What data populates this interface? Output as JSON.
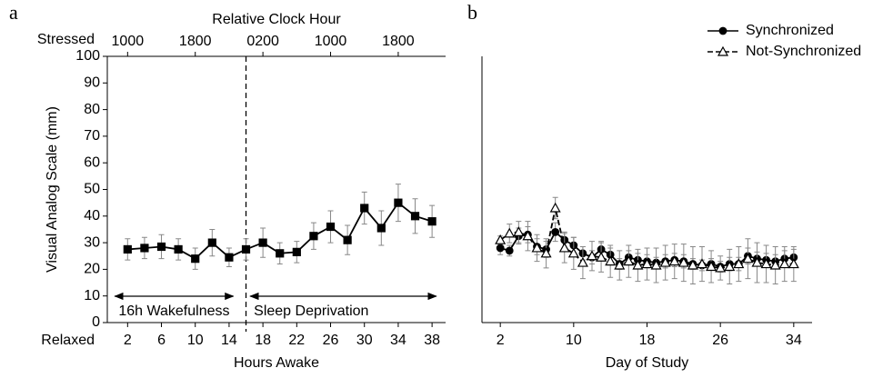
{
  "chart_data": [
    {
      "type": "line",
      "panel_label": "a",
      "top_axis_label": "Relative Clock Hour",
      "top_end_label": "Stressed",
      "bottom_end_label": "Relaxed",
      "x_label": "Hours Awake",
      "y_label": "Visual Analog Scale (mm)",
      "x": [
        2,
        4,
        6,
        8,
        10,
        12,
        14,
        16,
        18,
        20,
        22,
        24,
        26,
        28,
        30,
        32,
        34,
        36,
        38
      ],
      "series": [
        {
          "color": "#000000",
          "marker": "square",
          "dash": false,
          "values": [
            27.5,
            28,
            28.5,
            27.5,
            24,
            30,
            24.5,
            27.5,
            30,
            26,
            26.5,
            32.5,
            36,
            31,
            43,
            35.5,
            45,
            40,
            38
          ],
          "errors": [
            4,
            4,
            4.5,
            4,
            4,
            5,
            3.5,
            4,
            5.5,
            4,
            4,
            5,
            6,
            5.5,
            6,
            6.5,
            7,
            6.5,
            6
          ]
        }
      ],
      "xlim": [
        -0.4,
        39.6
      ],
      "xticks": [
        2,
        6,
        10,
        14,
        18,
        22,
        26,
        30,
        34,
        38
      ],
      "ylim": [
        0,
        100
      ],
      "yticks": [
        0,
        10,
        20,
        30,
        40,
        50,
        60,
        70,
        80,
        90,
        100
      ],
      "top_ticks": [
        {
          "value": 2,
          "label": "1000"
        },
        {
          "value": 10,
          "label": "1800"
        },
        {
          "value": 18,
          "label": "0200"
        },
        {
          "value": 26,
          "label": "1000"
        },
        {
          "value": 34,
          "label": "1800"
        }
      ],
      "divider_x": 16,
      "arrows": [
        {
          "text": "16h Wakefulness",
          "from": 0.5,
          "to": 14.5
        },
        {
          "text": "Sleep Deprivation",
          "from": 16.5,
          "to": 38.5
        }
      ]
    },
    {
      "type": "line",
      "panel_label": "b",
      "x_label": "Day of Study",
      "x": [
        2,
        3,
        4,
        5,
        6,
        7,
        8,
        9,
        10,
        11,
        12,
        13,
        14,
        15,
        16,
        17,
        18,
        19,
        20,
        21,
        22,
        23,
        24,
        25,
        26,
        27,
        28,
        29,
        30,
        31,
        32,
        33,
        34
      ],
      "series": [
        {
          "name": "Synchronized",
          "color": "#000000",
          "marker": "circle",
          "dash": false,
          "values": [
            28,
            27,
            32.5,
            33,
            28.5,
            27.5,
            34,
            31,
            29,
            26,
            24.5,
            27.5,
            25.5,
            22,
            24.5,
            23.5,
            23,
            22.5,
            23,
            23.5,
            23,
            22,
            21.5,
            22,
            21,
            22,
            22,
            25,
            24,
            23.5,
            23,
            24,
            24.5
          ],
          "errors": [
            2.5,
            2,
            3,
            3,
            3,
            3,
            3.5,
            3,
            3,
            2.5,
            2.5,
            3,
            2.5,
            2,
            2.5,
            2.5,
            2.5,
            2,
            2.5,
            2.5,
            2.5,
            2,
            2,
            2,
            2,
            2.5,
            2.5,
            3,
            2.5,
            2.5,
            2.5,
            3,
            3
          ]
        },
        {
          "name": "Not-Synchronized",
          "color": "#000000",
          "marker": "triangle",
          "dash": true,
          "values": [
            31,
            33.5,
            34,
            32.5,
            28,
            26,
            43,
            28,
            26,
            22.5,
            25,
            24.5,
            23,
            21.5,
            23,
            21.5,
            22,
            21.5,
            22.5,
            23,
            22.5,
            21.5,
            22,
            21,
            20.5,
            21,
            22,
            24,
            22.5,
            22,
            21.5,
            22,
            22
          ],
          "errors": [
            1.5,
            3.5,
            4,
            5.5,
            5,
            5.5,
            4,
            5.5,
            6,
            6,
            5.5,
            5.5,
            6,
            5.5,
            6,
            6,
            6,
            6.5,
            6.5,
            6.5,
            7,
            7,
            6.5,
            6,
            4.5,
            6.5,
            6.5,
            7.5,
            7.5,
            7,
            7,
            6.5,
            6.5
          ]
        }
      ],
      "xlim": [
        0,
        36
      ],
      "xticks": [
        2,
        10,
        18,
        26,
        34
      ],
      "ylim": [
        0,
        100
      ],
      "legend": "upper right"
    }
  ]
}
